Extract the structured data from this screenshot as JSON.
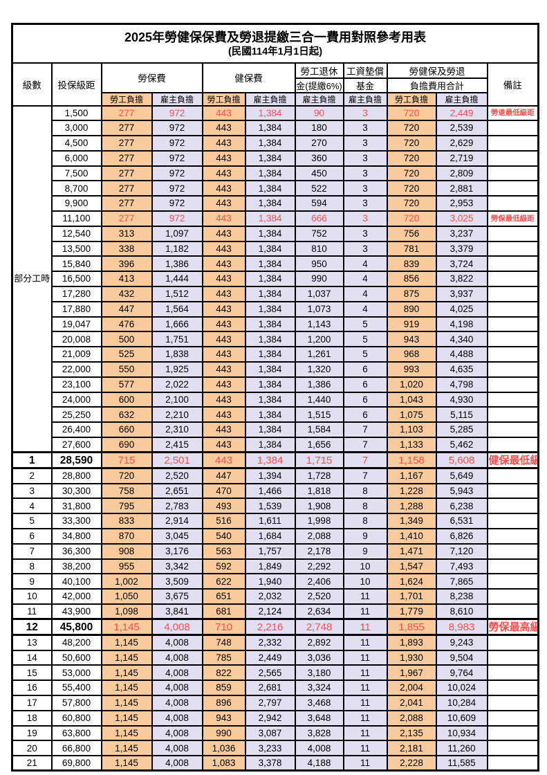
{
  "title": "2025年勞健保保費及勞退提繳三合一費用對照參考用表",
  "subtitle": "(民國114年1月1日起)",
  "header": {
    "level": "級數",
    "bracket": "投保級距",
    "labor_fee": "勞保費",
    "health_fee": "健保費",
    "pension_line1": "勞工退休",
    "pension_line2": "金(提繳6%)",
    "wage_fund_line1": "工資墊償",
    "wage_fund_line2": "基金",
    "total_line1": "勞健保及勞退",
    "total_line2": "負擔費用合計",
    "remark": "備註",
    "employee": "勞工負擔",
    "employer": "雇主負擔"
  },
  "part_time": {
    "label": "部分工時",
    "rowspan": 23
  },
  "colors": {
    "employee_bg": "#F9CB9C",
    "employer_bg": "#E2DFF3",
    "red": "#FF4D4D",
    "border": "#000000"
  },
  "rows": [
    {
      "level": "",
      "bracket": "1,500",
      "v": [
        "277",
        "972",
        "443",
        "1,384",
        "90",
        "3",
        "720",
        "2,449"
      ],
      "remark": "勞退最低級距",
      "red": true,
      "bold": false
    },
    {
      "level": "",
      "bracket": "3,000",
      "v": [
        "277",
        "972",
        "443",
        "1,384",
        "180",
        "3",
        "720",
        "2,539"
      ],
      "remark": "",
      "red": false,
      "bold": false
    },
    {
      "level": "",
      "bracket": "4,500",
      "v": [
        "277",
        "972",
        "443",
        "1,384",
        "270",
        "3",
        "720",
        "2,629"
      ],
      "remark": "",
      "red": false,
      "bold": false
    },
    {
      "level": "",
      "bracket": "6,000",
      "v": [
        "277",
        "972",
        "443",
        "1,384",
        "360",
        "3",
        "720",
        "2,719"
      ],
      "remark": "",
      "red": false,
      "bold": false
    },
    {
      "level": "",
      "bracket": "7,500",
      "v": [
        "277",
        "972",
        "443",
        "1,384",
        "450",
        "3",
        "720",
        "2,809"
      ],
      "remark": "",
      "red": false,
      "bold": false
    },
    {
      "level": "",
      "bracket": "8,700",
      "v": [
        "277",
        "972",
        "443",
        "1,384",
        "522",
        "3",
        "720",
        "2,881"
      ],
      "remark": "",
      "red": false,
      "bold": false
    },
    {
      "level": "",
      "bracket": "9,900",
      "v": [
        "277",
        "972",
        "443",
        "1,384",
        "594",
        "3",
        "720",
        "2,953"
      ],
      "remark": "",
      "red": false,
      "bold": false
    },
    {
      "level": "",
      "bracket": "11,100",
      "v": [
        "277",
        "972",
        "443",
        "1,384",
        "666",
        "3",
        "720",
        "3,025"
      ],
      "remark": "勞保最低級距",
      "red": true,
      "bold": false
    },
    {
      "level": "",
      "bracket": "12,540",
      "v": [
        "313",
        "1,097",
        "443",
        "1,384",
        "752",
        "3",
        "756",
        "3,237"
      ],
      "remark": "",
      "red": false,
      "bold": false
    },
    {
      "level": "",
      "bracket": "13,500",
      "v": [
        "338",
        "1,182",
        "443",
        "1,384",
        "810",
        "3",
        "781",
        "3,379"
      ],
      "remark": "",
      "red": false,
      "bold": false
    },
    {
      "level": "",
      "bracket": "15,840",
      "v": [
        "396",
        "1,386",
        "443",
        "1,384",
        "950",
        "4",
        "839",
        "3,724"
      ],
      "remark": "",
      "red": false,
      "bold": false
    },
    {
      "level": "",
      "bracket": "16,500",
      "v": [
        "413",
        "1,444",
        "443",
        "1,384",
        "990",
        "4",
        "856",
        "3,822"
      ],
      "remark": "",
      "red": false,
      "bold": false
    },
    {
      "level": "",
      "bracket": "17,280",
      "v": [
        "432",
        "1,512",
        "443",
        "1,384",
        "1,037",
        "4",
        "875",
        "3,937"
      ],
      "remark": "",
      "red": false,
      "bold": false
    },
    {
      "level": "",
      "bracket": "17,880",
      "v": [
        "447",
        "1,564",
        "443",
        "1,384",
        "1,073",
        "4",
        "890",
        "4,025"
      ],
      "remark": "",
      "red": false,
      "bold": false
    },
    {
      "level": "",
      "bracket": "19,047",
      "v": [
        "476",
        "1,666",
        "443",
        "1,384",
        "1,143",
        "5",
        "919",
        "4,198"
      ],
      "remark": "",
      "red": false,
      "bold": false
    },
    {
      "level": "",
      "bracket": "20,008",
      "v": [
        "500",
        "1,751",
        "443",
        "1,384",
        "1,200",
        "5",
        "943",
        "4,340"
      ],
      "remark": "",
      "red": false,
      "bold": false
    },
    {
      "level": "",
      "bracket": "21,009",
      "v": [
        "525",
        "1,838",
        "443",
        "1,384",
        "1,261",
        "5",
        "968",
        "4,488"
      ],
      "remark": "",
      "red": false,
      "bold": false
    },
    {
      "level": "",
      "bracket": "22,000",
      "v": [
        "550",
        "1,925",
        "443",
        "1,384",
        "1,320",
        "6",
        "993",
        "4,635"
      ],
      "remark": "",
      "red": false,
      "bold": false
    },
    {
      "level": "",
      "bracket": "23,100",
      "v": [
        "577",
        "2,022",
        "443",
        "1,384",
        "1,386",
        "6",
        "1,020",
        "4,798"
      ],
      "remark": "",
      "red": false,
      "bold": false
    },
    {
      "level": "",
      "bracket": "24,000",
      "v": [
        "600",
        "2,100",
        "443",
        "1,384",
        "1,440",
        "6",
        "1,043",
        "4,930"
      ],
      "remark": "",
      "red": false,
      "bold": false
    },
    {
      "level": "",
      "bracket": "25,250",
      "v": [
        "632",
        "2,210",
        "443",
        "1,384",
        "1,515",
        "6",
        "1,075",
        "5,115"
      ],
      "remark": "",
      "red": false,
      "bold": false
    },
    {
      "level": "",
      "bracket": "26,400",
      "v": [
        "660",
        "2,310",
        "443",
        "1,384",
        "1,584",
        "7",
        "1,103",
        "5,285"
      ],
      "remark": "",
      "red": false,
      "bold": false
    },
    {
      "level": "",
      "bracket": "27,600",
      "v": [
        "690",
        "2,415",
        "443",
        "1,384",
        "1,656",
        "7",
        "1,133",
        "5,462"
      ],
      "remark": "",
      "red": false,
      "bold": false
    },
    {
      "level": "1",
      "bracket": "28,590",
      "v": [
        "715",
        "2,501",
        "443",
        "1,384",
        "1,715",
        "7",
        "1,158",
        "5,608"
      ],
      "remark": "健保最低級距",
      "red": true,
      "bold": true
    },
    {
      "level": "2",
      "bracket": "28,800",
      "v": [
        "720",
        "2,520",
        "447",
        "1,394",
        "1,728",
        "7",
        "1,167",
        "5,649"
      ],
      "remark": "",
      "red": false,
      "bold": false
    },
    {
      "level": "3",
      "bracket": "30,300",
      "v": [
        "758",
        "2,651",
        "470",
        "1,466",
        "1,818",
        "8",
        "1,228",
        "5,943"
      ],
      "remark": "",
      "red": false,
      "bold": false
    },
    {
      "level": "4",
      "bracket": "31,800",
      "v": [
        "795",
        "2,783",
        "493",
        "1,539",
        "1,908",
        "8",
        "1,288",
        "6,238"
      ],
      "remark": "",
      "red": false,
      "bold": false
    },
    {
      "level": "5",
      "bracket": "33,300",
      "v": [
        "833",
        "2,914",
        "516",
        "1,611",
        "1,998",
        "8",
        "1,349",
        "6,531"
      ],
      "remark": "",
      "red": false,
      "bold": false
    },
    {
      "level": "6",
      "bracket": "34,800",
      "v": [
        "870",
        "3,045",
        "540",
        "1,684",
        "2,088",
        "9",
        "1,410",
        "6,826"
      ],
      "remark": "",
      "red": false,
      "bold": false
    },
    {
      "level": "7",
      "bracket": "36,300",
      "v": [
        "908",
        "3,176",
        "563",
        "1,757",
        "2,178",
        "9",
        "1,471",
        "7,120"
      ],
      "remark": "",
      "red": false,
      "bold": false
    },
    {
      "level": "8",
      "bracket": "38,200",
      "v": [
        "955",
        "3,342",
        "592",
        "1,849",
        "2,292",
        "10",
        "1,547",
        "7,493"
      ],
      "remark": "",
      "red": false,
      "bold": false
    },
    {
      "level": "9",
      "bracket": "40,100",
      "v": [
        "1,002",
        "3,509",
        "622",
        "1,940",
        "2,406",
        "10",
        "1,624",
        "7,865"
      ],
      "remark": "",
      "red": false,
      "bold": false
    },
    {
      "level": "10",
      "bracket": "42,000",
      "v": [
        "1,050",
        "3,675",
        "651",
        "2,032",
        "2,520",
        "11",
        "1,701",
        "8,238"
      ],
      "remark": "",
      "red": false,
      "bold": false
    },
    {
      "level": "11",
      "bracket": "43,900",
      "v": [
        "1,098",
        "3,841",
        "681",
        "2,124",
        "2,634",
        "11",
        "1,779",
        "8,610"
      ],
      "remark": "",
      "red": false,
      "bold": false
    },
    {
      "level": "12",
      "bracket": "45,800",
      "v": [
        "1,145",
        "4,008",
        "710",
        "2,216",
        "2,748",
        "11",
        "1,855",
        "8,983"
      ],
      "remark": "勞保最高級距",
      "red": true,
      "bold": true
    },
    {
      "level": "13",
      "bracket": "48,200",
      "v": [
        "1,145",
        "4,008",
        "748",
        "2,332",
        "2,892",
        "11",
        "1,893",
        "9,243"
      ],
      "remark": "",
      "red": false,
      "bold": false
    },
    {
      "level": "14",
      "bracket": "50,600",
      "v": [
        "1,145",
        "4,008",
        "785",
        "2,449",
        "3,036",
        "11",
        "1,930",
        "9,504"
      ],
      "remark": "",
      "red": false,
      "bold": false
    },
    {
      "level": "15",
      "bracket": "53,000",
      "v": [
        "1,145",
        "4,008",
        "822",
        "2,565",
        "3,180",
        "11",
        "1,967",
        "9,764"
      ],
      "remark": "",
      "red": false,
      "bold": false
    },
    {
      "level": "16",
      "bracket": "55,400",
      "v": [
        "1,145",
        "4,008",
        "859",
        "2,681",
        "3,324",
        "11",
        "2,004",
        "10,024"
      ],
      "remark": "",
      "red": false,
      "bold": false
    },
    {
      "level": "17",
      "bracket": "57,800",
      "v": [
        "1,145",
        "4,008",
        "896",
        "2,797",
        "3,468",
        "11",
        "2,041",
        "10,284"
      ],
      "remark": "",
      "red": false,
      "bold": false
    },
    {
      "level": "18",
      "bracket": "60,800",
      "v": [
        "1,145",
        "4,008",
        "943",
        "2,942",
        "3,648",
        "11",
        "2,088",
        "10,609"
      ],
      "remark": "",
      "red": false,
      "bold": false
    },
    {
      "level": "19",
      "bracket": "63,800",
      "v": [
        "1,145",
        "4,008",
        "990",
        "3,087",
        "3,828",
        "11",
        "2,135",
        "10,934"
      ],
      "remark": "",
      "red": false,
      "bold": false
    },
    {
      "level": "20",
      "bracket": "66,800",
      "v": [
        "1,145",
        "4,008",
        "1,036",
        "3,233",
        "4,008",
        "11",
        "2,181",
        "11,260"
      ],
      "remark": "",
      "red": false,
      "bold": false
    },
    {
      "level": "21",
      "bracket": "69,800",
      "v": [
        "1,145",
        "4,008",
        "1,083",
        "3,378",
        "4,188",
        "11",
        "2,228",
        "11,585"
      ],
      "remark": "",
      "red": false,
      "bold": false
    }
  ]
}
